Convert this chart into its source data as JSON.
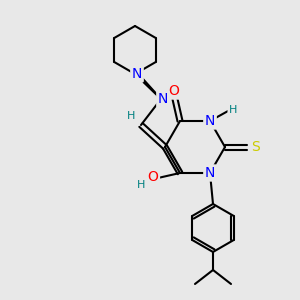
{
  "bg_color": "#e8e8e8",
  "atom_colors": {
    "N": "#0000ff",
    "O": "#ff0000",
    "S": "#cccc00",
    "H": "#008080"
  },
  "bond_color": "#000000",
  "line_width": 1.5,
  "font_size": 10
}
